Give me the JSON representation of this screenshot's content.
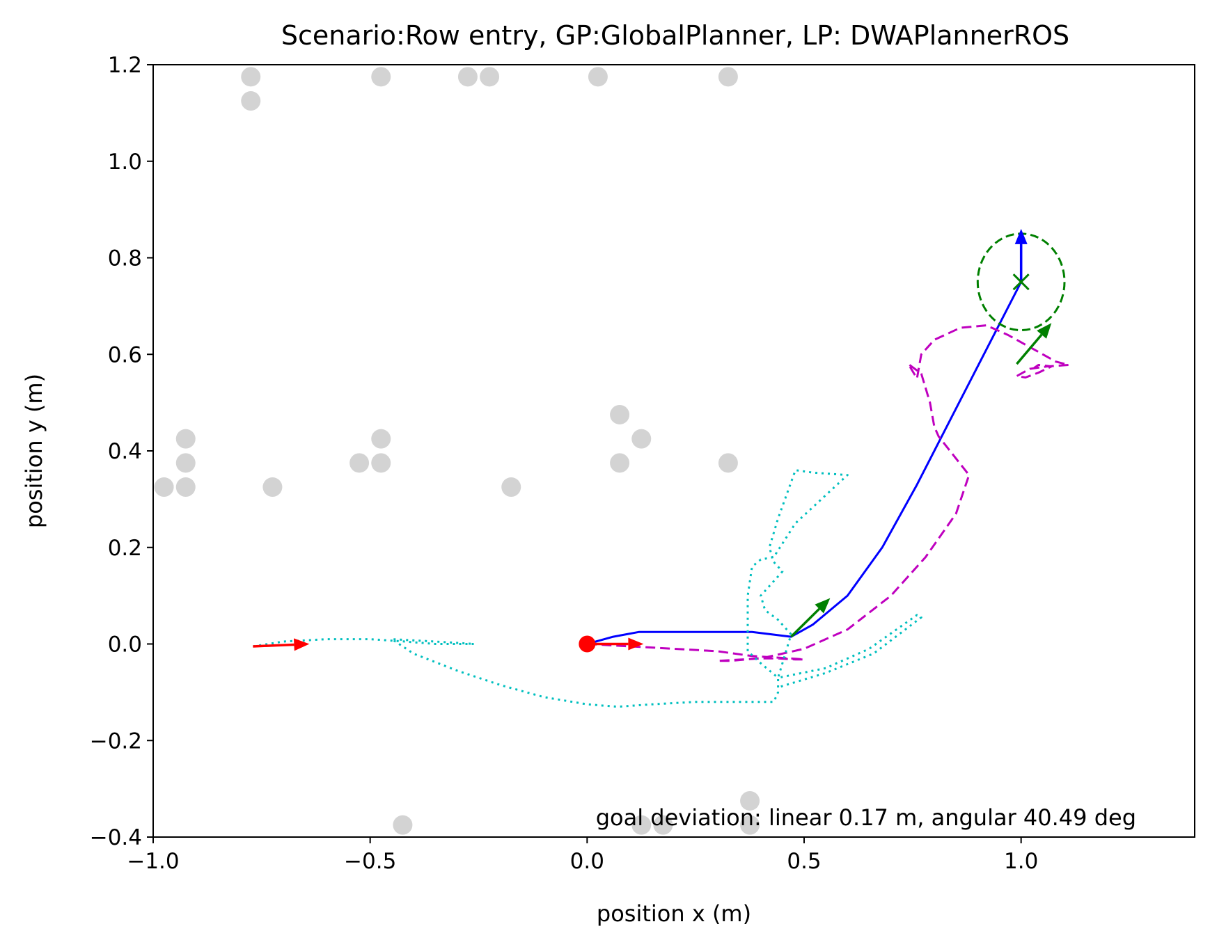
{
  "chart_data": {
    "type": "scatter",
    "title": "Scenario:Row entry, GP:GlobalPlanner, LP: DWAPlannerROS",
    "xlabel": "position x (m)",
    "ylabel": "position y (m)",
    "xlim": [
      -1.0,
      1.4
    ],
    "ylim": [
      -0.4,
      1.2
    ],
    "xticks": [
      -1.0,
      -0.5,
      0.0,
      0.5,
      1.0
    ],
    "xtick_labels": [
      "−1.0",
      "−0.5",
      "0.0",
      "0.5",
      "1.0"
    ],
    "yticks": [
      -0.4,
      -0.2,
      0.0,
      0.2,
      0.4,
      0.6,
      0.8,
      1.0,
      1.2
    ],
    "ytick_labels": [
      "−0.4",
      "−0.2",
      "0.0",
      "0.2",
      "0.4",
      "0.6",
      "0.8",
      "1.0",
      "1.2"
    ],
    "grid": false,
    "annotation": "goal deviation: linear 0.17 m, angular 40.49 deg",
    "obstacles": {
      "color": "#d3d3d3",
      "points": [
        [
          -0.775,
          1.175
        ],
        [
          -0.775,
          1.125
        ],
        [
          -0.475,
          1.175
        ],
        [
          -0.275,
          1.175
        ],
        [
          -0.225,
          1.175
        ],
        [
          0.025,
          1.175
        ],
        [
          0.325,
          1.175
        ],
        [
          -0.925,
          0.425
        ],
        [
          -0.925,
          0.375
        ],
        [
          -0.975,
          0.325
        ],
        [
          -0.925,
          0.325
        ],
        [
          -0.725,
          0.325
        ],
        [
          -0.525,
          0.375
        ],
        [
          -0.475,
          0.425
        ],
        [
          -0.475,
          0.375
        ],
        [
          -0.175,
          0.325
        ],
        [
          0.075,
          0.475
        ],
        [
          0.075,
          0.375
        ],
        [
          0.125,
          0.425
        ],
        [
          0.325,
          0.375
        ],
        [
          -0.425,
          -0.375
        ],
        [
          0.125,
          -0.375
        ],
        [
          0.175,
          -0.375
        ],
        [
          0.375,
          -0.325
        ],
        [
          0.375,
          -0.375
        ]
      ]
    },
    "series": [
      {
        "role": "robot-path",
        "color": "#0000ff",
        "style": "solid",
        "points": [
          [
            0.0,
            0.0
          ],
          [
            0.06,
            0.015
          ],
          [
            0.12,
            0.025
          ],
          [
            0.25,
            0.025
          ],
          [
            0.38,
            0.025
          ],
          [
            0.47,
            0.015
          ],
          [
            0.52,
            0.04
          ],
          [
            0.6,
            0.1
          ],
          [
            0.68,
            0.2
          ],
          [
            0.76,
            0.33
          ],
          [
            0.84,
            0.47
          ],
          [
            0.92,
            0.61
          ],
          [
            1.0,
            0.75
          ],
          [
            1.0,
            0.85
          ]
        ]
      },
      {
        "role": "global-plan",
        "color": "#bf00bf",
        "style": "dashed",
        "points": [
          [
            0.0,
            0.0
          ],
          [
            0.1,
            -0.005
          ],
          [
            0.2,
            -0.01
          ],
          [
            0.3,
            -0.015
          ],
          [
            0.38,
            -0.025
          ],
          [
            0.47,
            -0.03
          ],
          [
            0.5,
            -0.032
          ],
          [
            0.48,
            -0.032
          ],
          [
            0.44,
            -0.03
          ],
          [
            0.39,
            -0.03
          ],
          [
            0.33,
            -0.035
          ],
          [
            0.3,
            -0.035
          ],
          [
            0.4,
            -0.03
          ],
          [
            0.5,
            -0.01
          ],
          [
            0.6,
            0.03
          ],
          [
            0.7,
            0.1
          ],
          [
            0.78,
            0.18
          ],
          [
            0.85,
            0.27
          ],
          [
            0.88,
            0.35
          ],
          [
            0.81,
            0.43
          ],
          [
            0.8,
            0.45
          ],
          [
            0.79,
            0.5
          ],
          [
            0.77,
            0.56
          ],
          [
            0.74,
            0.58
          ],
          [
            0.76,
            0.55
          ],
          [
            0.77,
            0.6
          ],
          [
            0.8,
            0.63
          ],
          [
            0.86,
            0.655
          ],
          [
            0.92,
            0.66
          ],
          [
            0.97,
            0.64
          ],
          [
            1.03,
            0.61
          ],
          [
            1.08,
            0.585
          ],
          [
            1.11,
            0.578
          ],
          [
            1.06,
            0.575
          ],
          [
            1.02,
            0.57
          ],
          [
            0.99,
            0.555
          ],
          [
            1.01,
            0.552
          ],
          [
            1.04,
            0.562
          ],
          [
            1.07,
            0.575
          ],
          [
            1.04,
            0.578
          ],
          [
            1.03,
            0.572
          ]
        ]
      },
      {
        "role": "local-plan",
        "color": "#00bfbf",
        "style": "dotted",
        "points": [
          [
            -0.77,
            -0.005
          ],
          [
            -0.7,
            0.005
          ],
          [
            -0.6,
            0.01
          ],
          [
            -0.5,
            0.01
          ],
          [
            -0.42,
            0.005
          ],
          [
            -0.35,
            0.0
          ],
          [
            -0.26,
            0.0
          ],
          [
            -0.35,
            0.005
          ],
          [
            -0.45,
            0.01
          ],
          [
            -0.4,
            -0.02
          ],
          [
            -0.3,
            -0.055
          ],
          [
            -0.2,
            -0.085
          ],
          [
            -0.1,
            -0.11
          ],
          [
            0.0,
            -0.125
          ],
          [
            0.07,
            -0.13
          ],
          [
            0.15,
            -0.125
          ],
          [
            0.25,
            -0.12
          ],
          [
            0.35,
            -0.12
          ],
          [
            0.43,
            -0.12
          ],
          [
            0.44,
            -0.1
          ],
          [
            0.44,
            -0.07
          ],
          [
            0.4,
            -0.04
          ],
          [
            0.37,
            -0.015
          ],
          [
            0.37,
            0.1
          ],
          [
            0.38,
            0.16
          ],
          [
            0.4,
            0.175
          ],
          [
            0.43,
            0.18
          ],
          [
            0.48,
            0.25
          ],
          [
            0.54,
            0.3
          ],
          [
            0.6,
            0.35
          ],
          [
            0.52,
            0.355
          ],
          [
            0.48,
            0.36
          ],
          [
            0.44,
            0.26
          ],
          [
            0.42,
            0.2
          ],
          [
            0.43,
            0.17
          ],
          [
            0.45,
            0.15
          ],
          [
            0.42,
            0.12
          ],
          [
            0.4,
            0.1
          ],
          [
            0.41,
            0.07
          ],
          [
            0.44,
            0.05
          ],
          [
            0.47,
            0.02
          ],
          [
            0.44,
            -0.07
          ],
          [
            0.55,
            -0.05
          ],
          [
            0.65,
            -0.01
          ],
          [
            0.76,
            0.06
          ],
          [
            0.77,
            0.055
          ],
          [
            0.66,
            -0.02
          ],
          [
            0.55,
            -0.06
          ],
          [
            0.44,
            -0.09
          ]
        ]
      }
    ],
    "arrows": [
      {
        "role": "start-orientation",
        "color": "#ff0000",
        "from": [
          -0.77,
          -0.005
        ],
        "to": [
          -0.64,
          0.0
        ]
      },
      {
        "role": "start-orientation",
        "color": "#ff0000",
        "from": [
          0.0,
          0.0
        ],
        "to": [
          0.13,
          0.0
        ]
      },
      {
        "role": "goal-orientation",
        "color": "#008000",
        "from": [
          0.47,
          0.015
        ],
        "to": [
          0.56,
          0.095
        ]
      },
      {
        "role": "goal-orientation",
        "color": "#008000",
        "from": [
          0.99,
          0.58
        ],
        "to": [
          1.07,
          0.665
        ]
      },
      {
        "role": "final-orientation",
        "color": "#0000ff",
        "from": [
          1.0,
          0.75
        ],
        "to": [
          1.0,
          0.86
        ]
      }
    ],
    "start": {
      "x": 0.0,
      "y": 0.0,
      "color": "#ff0000"
    },
    "goal": {
      "x": 1.0,
      "y": 0.75,
      "color": "#008000",
      "tolerance_radius": 0.1
    }
  }
}
